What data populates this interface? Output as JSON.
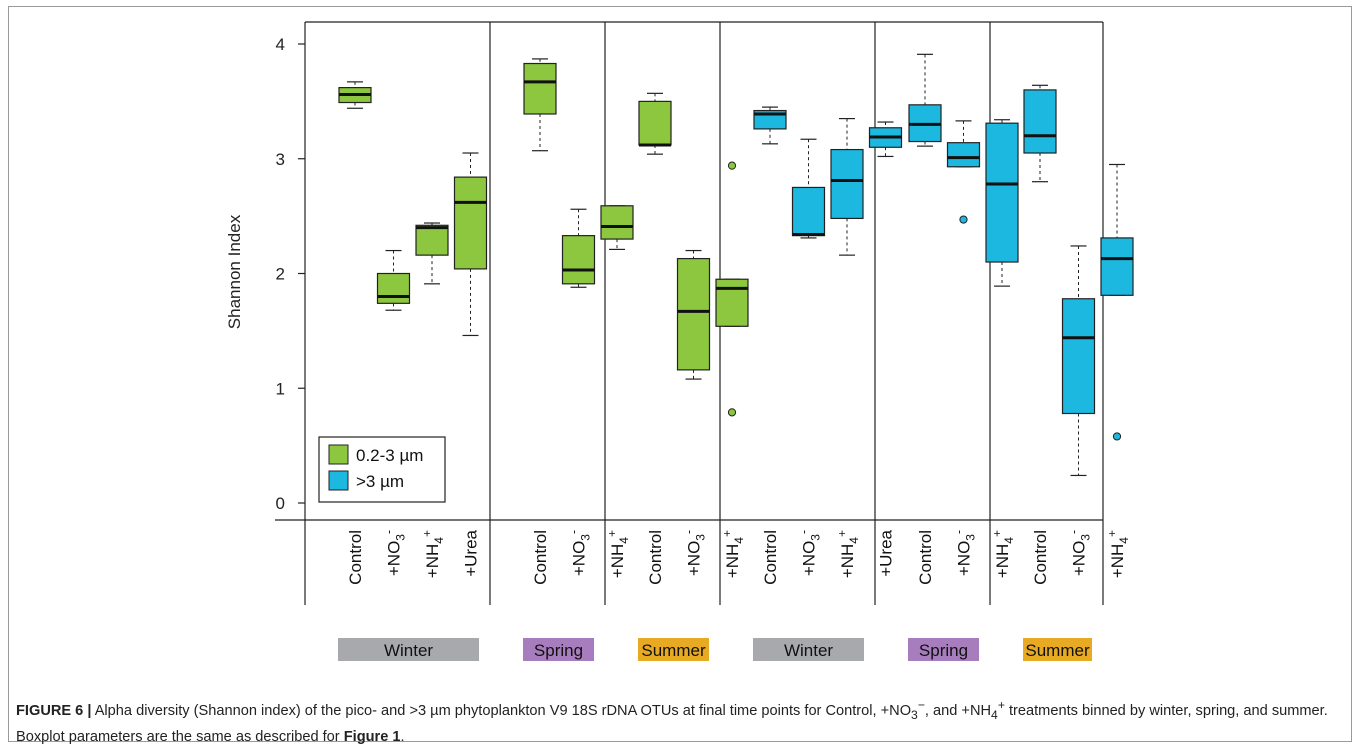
{
  "chart_data": {
    "type": "box",
    "ylabel": "Shannon Index",
    "ylim": [
      -0.15,
      4.25
    ],
    "yticks": [
      0,
      1,
      2,
      3,
      4
    ],
    "legend": {
      "position": "bottom-left",
      "entries": [
        {
          "label": "0.2-3 µm",
          "color": "#8dc63f"
        },
        {
          "label": ">3 µm",
          "color": "#1cb8e0"
        }
      ]
    },
    "season_colors": {
      "Winter": "#a7a9ac",
      "Spring": "#a87dbd",
      "Summer": "#e8a923"
    },
    "panels": [
      {
        "season": "Winter",
        "fraction": "0.2-3 µm",
        "color": "#8dc63f",
        "boxes": [
          {
            "label": "Control",
            "sub": "",
            "sup": "",
            "whislo": 3.44,
            "q1": 3.49,
            "med": 3.56,
            "q3": 3.62,
            "whishi": 3.67,
            "fliers": []
          },
          {
            "label": "+NO",
            "sub": "3",
            "sup": "-",
            "whislo": 1.68,
            "q1": 1.74,
            "med": 1.8,
            "q3": 2.0,
            "whishi": 2.2,
            "fliers": []
          },
          {
            "label": "+NH",
            "sub": "4",
            "sup": "+",
            "whislo": 1.91,
            "q1": 2.16,
            "med": 2.4,
            "q3": 2.42,
            "whishi": 2.44,
            "fliers": []
          },
          {
            "label": "+Urea",
            "sub": "",
            "sup": "",
            "whislo": 1.46,
            "q1": 2.04,
            "med": 2.62,
            "q3": 2.84,
            "whishi": 3.05,
            "fliers": []
          }
        ]
      },
      {
        "season": "Spring",
        "fraction": "0.2-3 µm",
        "color": "#8dc63f",
        "boxes": [
          {
            "label": "Control",
            "sub": "",
            "sup": "",
            "whislo": 3.07,
            "q1": 3.39,
            "med": 3.67,
            "q3": 3.83,
            "whishi": 3.87,
            "fliers": []
          },
          {
            "label": "+NO",
            "sub": "3",
            "sup": "-",
            "whislo": 1.88,
            "q1": 1.91,
            "med": 2.03,
            "q3": 2.33,
            "whishi": 2.56,
            "fliers": []
          },
          {
            "label": "+NH",
            "sub": "4",
            "sup": "+",
            "whislo": 2.21,
            "q1": 2.3,
            "med": 2.41,
            "q3": 2.59,
            "whishi": 2.59,
            "fliers": []
          }
        ]
      },
      {
        "season": "Summer",
        "fraction": "0.2-3 µm",
        "color": "#8dc63f",
        "boxes": [
          {
            "label": "Control",
            "sub": "",
            "sup": "",
            "whislo": 3.04,
            "q1": 3.12,
            "med": 3.12,
            "q3": 3.5,
            "whishi": 3.57,
            "fliers": []
          },
          {
            "label": "+NO",
            "sub": "3",
            "sup": "-",
            "whislo": 1.08,
            "q1": 1.16,
            "med": 1.67,
            "q3": 2.13,
            "whishi": 2.2,
            "fliers": []
          },
          {
            "label": "+NH",
            "sub": "4",
            "sup": "+",
            "whislo": 1.54,
            "q1": 1.54,
            "med": 1.87,
            "q3": 1.95,
            "whishi": 1.95,
            "fliers": [
              0.79,
              2.94
            ]
          }
        ]
      },
      {
        "season": "Winter",
        "fraction": ">3 µm",
        "color": "#1cb8e0",
        "boxes": [
          {
            "label": "Control",
            "sub": "",
            "sup": "",
            "whislo": 3.13,
            "q1": 3.26,
            "med": 3.39,
            "q3": 3.42,
            "whishi": 3.45,
            "fliers": []
          },
          {
            "label": "+NO",
            "sub": "3",
            "sup": "-",
            "whislo": 2.31,
            "q1": 2.33,
            "med": 2.34,
            "q3": 2.75,
            "whishi": 3.17,
            "fliers": []
          },
          {
            "label": "+NH",
            "sub": "4",
            "sup": "+",
            "whislo": 2.16,
            "q1": 2.48,
            "med": 2.81,
            "q3": 3.08,
            "whishi": 3.35,
            "fliers": []
          },
          {
            "label": "+Urea",
            "sub": "",
            "sup": "",
            "whislo": 3.02,
            "q1": 3.1,
            "med": 3.19,
            "q3": 3.27,
            "whishi": 3.32,
            "fliers": []
          }
        ]
      },
      {
        "season": "Spring",
        "fraction": ">3 µm",
        "color": "#1cb8e0",
        "boxes": [
          {
            "label": "Control",
            "sub": "",
            "sup": "",
            "whislo": 3.11,
            "q1": 3.15,
            "med": 3.3,
            "q3": 3.47,
            "whishi": 3.91,
            "fliers": []
          },
          {
            "label": "+NO",
            "sub": "3",
            "sup": "-",
            "whislo": 2.93,
            "q1": 2.93,
            "med": 3.01,
            "q3": 3.14,
            "whishi": 3.33,
            "fliers": [
              2.47
            ]
          },
          {
            "label": "+NH",
            "sub": "4",
            "sup": "+",
            "whislo": 1.89,
            "q1": 2.1,
            "med": 2.78,
            "q3": 3.31,
            "whishi": 3.34,
            "fliers": []
          }
        ]
      },
      {
        "season": "Summer",
        "fraction": ">3 µm",
        "color": "#1cb8e0",
        "boxes": [
          {
            "label": "Control",
            "sub": "",
            "sup": "",
            "whislo": 2.8,
            "q1": 3.05,
            "med": 3.2,
            "q3": 3.6,
            "whishi": 3.64,
            "fliers": []
          },
          {
            "label": "+NO",
            "sub": "3",
            "sup": "-",
            "whislo": 0.24,
            "q1": 0.78,
            "med": 1.44,
            "q3": 1.78,
            "whishi": 2.24,
            "fliers": []
          },
          {
            "label": "+NH",
            "sub": "4",
            "sup": "+",
            "whislo": 1.81,
            "q1": 1.81,
            "med": 2.13,
            "q3": 2.31,
            "whishi": 2.95,
            "fliers": [
              0.58
            ]
          }
        ]
      }
    ]
  },
  "caption": {
    "label": "FIGURE 6 |",
    "part1": " Alpha diversity (Shannon index) of the pico- and >3 µm phytoplankton V9 18S rDNA OTUs at final time points for Control, +NO",
    "no3_sub": "3",
    "no3_sup": "−",
    "part2": ", and +NH",
    "nh4_sub": "4",
    "nh4_sup": "+",
    "part3": " treatments binned by winter, spring, and summer. Boxplot parameters are the same as described for ",
    "ref": "Figure 1",
    "part4": "."
  }
}
